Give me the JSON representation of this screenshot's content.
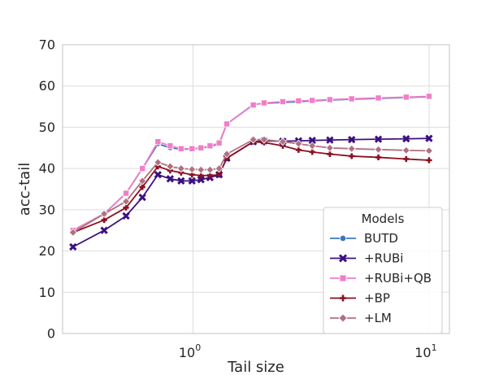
{
  "chart_data": {
    "type": "line",
    "xlabel": "Tail size",
    "ylabel": "acc-tail",
    "xscale": "log",
    "xlim": [
      0.28,
      12.2
    ],
    "ylim": [
      0,
      70
    ],
    "yticks": [
      0,
      10,
      20,
      30,
      40,
      50,
      60,
      70
    ],
    "xticks": [
      {
        "value": 1,
        "base": "10",
        "exp": "0"
      },
      {
        "value": 10,
        "base": "10",
        "exp": "1"
      }
    ],
    "grid": true,
    "legend": {
      "title": "Models",
      "position": "lower-right"
    },
    "x": [
      0.31,
      0.42,
      0.52,
      0.61,
      0.71,
      0.8,
      0.89,
      0.99,
      1.08,
      1.18,
      1.29,
      1.39,
      1.8,
      2.0,
      2.4,
      2.8,
      3.2,
      3.8,
      4.7,
      6.1,
      8.0,
      10.0
    ],
    "series": [
      {
        "name": "BUTD",
        "color": "#3a78c0",
        "marker": "circle",
        "values": [
          25.0,
          29.0,
          34.0,
          40.0,
          46.0,
          45.0,
          44.7,
          44.7,
          45.0,
          45.3,
          46.0,
          50.8,
          55.5,
          55.8,
          56.0,
          56.2,
          56.4,
          56.6,
          56.8,
          57.0,
          57.2,
          57.4
        ]
      },
      {
        "name": "+RUBi",
        "color": "#3c1082",
        "marker": "x",
        "values": [
          21.0,
          25.0,
          28.5,
          33.0,
          38.5,
          37.5,
          37.0,
          37.0,
          37.3,
          37.8,
          38.5,
          42.5,
          46.5,
          46.7,
          46.6,
          46.7,
          46.8,
          46.9,
          47.0,
          47.1,
          47.2,
          47.3
        ]
      },
      {
        "name": "+RUBi+QB",
        "color": "#f07ec8",
        "marker": "square",
        "values": [
          25.0,
          29.0,
          34.0,
          40.0,
          46.5,
          45.5,
          44.8,
          44.8,
          45.0,
          45.5,
          46.2,
          50.8,
          55.4,
          55.9,
          56.2,
          56.4,
          56.5,
          56.7,
          56.9,
          57.1,
          57.3,
          57.5
        ]
      },
      {
        "name": "+BP",
        "color": "#8c1020",
        "marker": "plus",
        "values": [
          24.5,
          27.5,
          30.5,
          35.5,
          40.5,
          39.5,
          39.0,
          38.5,
          38.3,
          38.3,
          38.5,
          42.5,
          46.5,
          46.3,
          45.5,
          44.5,
          44.0,
          43.5,
          43.0,
          42.7,
          42.3,
          42.0
        ]
      },
      {
        "name": "+LM",
        "color": "#b07080",
        "marker": "diamond",
        "values": [
          24.5,
          29.0,
          32.0,
          37.0,
          41.5,
          40.5,
          40.0,
          39.8,
          39.7,
          39.7,
          40.0,
          43.5,
          47.0,
          47.0,
          46.5,
          46.0,
          45.5,
          45.0,
          44.8,
          44.6,
          44.4,
          44.3
        ]
      }
    ]
  }
}
